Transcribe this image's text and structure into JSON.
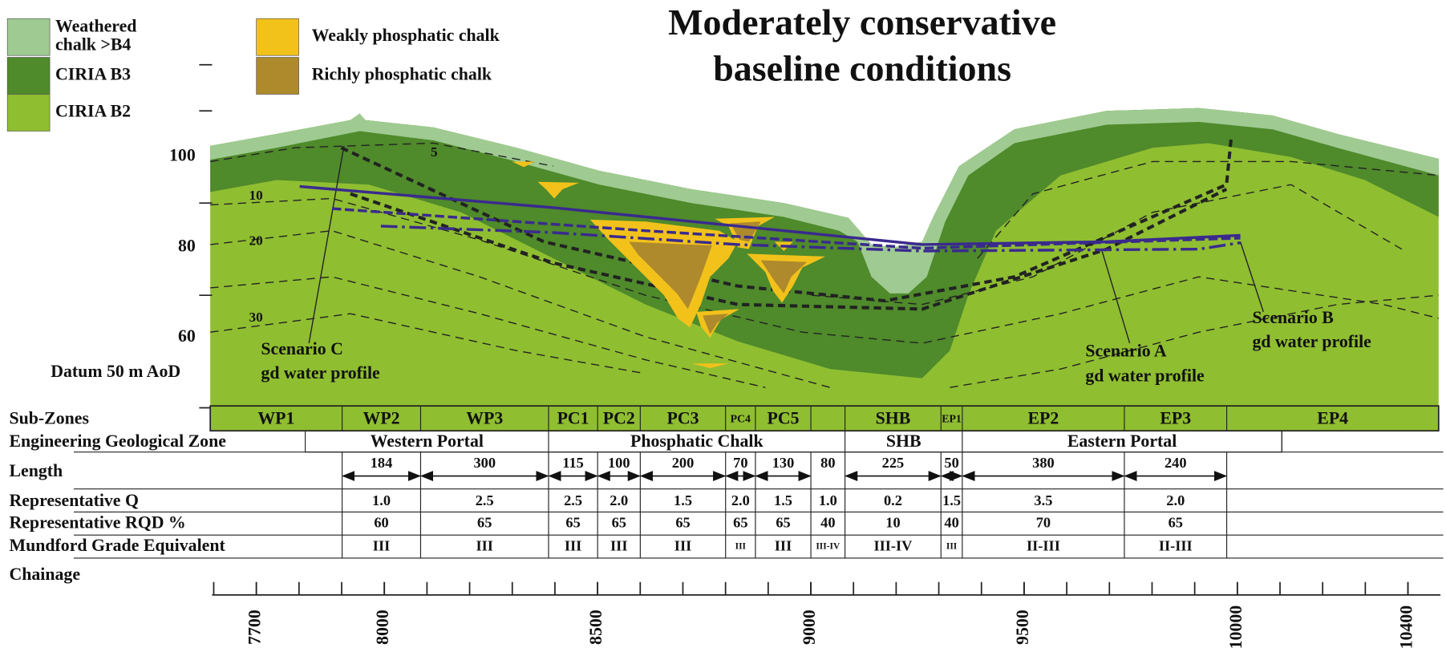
{
  "title": {
    "lines": [
      "Moderately conservative",
      "baseline conditions"
    ]
  },
  "legend": [
    {
      "label_lines": [
        "Weathered",
        "chalk >B4"
      ],
      "color": "#9fcb92"
    },
    {
      "label_lines": [
        "CIRIA B3"
      ],
      "color": "#4f8a2b"
    },
    {
      "label_lines": [
        "CIRIA B2"
      ],
      "color": "#8fbe31"
    },
    {
      "label_lines": [
        "Weakly phosphatic chalk"
      ],
      "color": "#f2c21b"
    },
    {
      "label_lines": [
        "Richly phosphatic chalk"
      ],
      "color": "#ae8a2c"
    }
  ],
  "elevation_labels": [
    100,
    80,
    60
  ],
  "datum": "Datum 50 m AoD",
  "contour_labels": [
    "5",
    "10",
    "20",
    "30"
  ],
  "scenarios": [
    {
      "lines": [
        "Scenario C",
        "gd water profile"
      ]
    },
    {
      "lines": [
        "Scenario A",
        "gd water profile"
      ]
    },
    {
      "lines": [
        "Scenario B",
        "gd water profile"
      ]
    }
  ],
  "table": {
    "row_labels": {
      "sub_zones": "Sub-Zones",
      "zone": "Engineering Geological Zone",
      "length": "Length",
      "q": "Representative Q",
      "rqd": "Representative RQD %",
      "grade": "Mundford Grade Equivalent",
      "chainage": "Chainage"
    },
    "sub_zones": [
      "WP1",
      "WP2",
      "WP3",
      "PC1",
      "PC2",
      "PC3",
      "PC4",
      "PC5",
      null,
      "SHB",
      "EP1",
      "EP2",
      "EP3",
      "EP4"
    ],
    "zones": [
      "Western Portal",
      "Phosphatic Chalk",
      "SHB",
      "Eastern Portal"
    ],
    "length": [
      184,
      300,
      115,
      100,
      200,
      70,
      130,
      80,
      225,
      50,
      380,
      240
    ],
    "q": [
      "1.0",
      "2.5",
      "2.5",
      "2.0",
      "1.5",
      "2.0",
      "1.5",
      "1.0",
      "0.2",
      "1.5",
      "3.5",
      "2.0"
    ],
    "rqd": [
      60,
      65,
      65,
      65,
      65,
      65,
      65,
      40,
      10,
      40,
      70,
      65
    ],
    "grade": [
      "III",
      "III",
      "III",
      "III",
      "III",
      "III",
      "III",
      "III-IV",
      "III-IV",
      "III",
      "II-III",
      "II-III"
    ]
  },
  "chainage": [
    7700,
    8000,
    8500,
    9000,
    9500,
    10000,
    10400
  ]
}
